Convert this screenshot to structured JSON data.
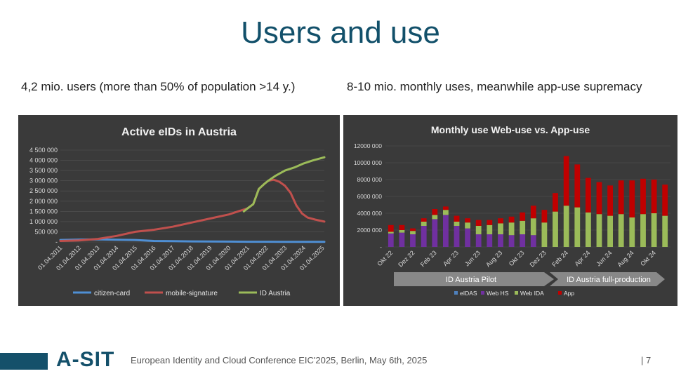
{
  "slide": {
    "title": "Users and use",
    "left_subtitle": "4,2 mio. users (more than 50% of population >14 y.)",
    "right_subtitle": "8-10 mio. monthly uses, meanwhile app-use supremacy",
    "logo": "A-SIT",
    "conference": "European Identity and Cloud Conference EIC'2025, Berlin, May 6th, 2025",
    "page": "| 7"
  },
  "chart_data": [
    {
      "type": "line",
      "title": "Active eIDs in Austria",
      "ylim": [
        0,
        4500000
      ],
      "yticks": [
        "4 500 000",
        "4 000 000",
        "3 500 000",
        "3 000 000",
        "2 500 000",
        "2 000 000",
        "1 500 000",
        "1 000 000",
        "500 000",
        "-"
      ],
      "xticks": [
        "01.04.2011",
        "01.04.2012",
        "01.04.2013",
        "01.04.2014",
        "01.04.2015",
        "01.04.2016",
        "01.04.2017",
        "01.04.2018",
        "01.04.2019",
        "01.04.2020",
        "01.04.2021",
        "01.04.2022",
        "01.04.2023",
        "01.04.2024",
        "01.04.2025"
      ],
      "legend_position": "bottom",
      "series": [
        {
          "name": "citizen-card",
          "color": "#4f8fd4",
          "x": [
            2011,
            2012,
            2013,
            2014,
            2015,
            2016,
            2017,
            2018,
            2019,
            2020,
            2021,
            2022,
            2023,
            2024,
            2025.1
          ],
          "y": [
            100000,
            120000,
            130000,
            110000,
            100000,
            50000,
            40000,
            30000,
            25000,
            20000,
            15000,
            15000,
            10000,
            10000,
            10000
          ]
        },
        {
          "name": "mobile-signature",
          "color": "#c0504d",
          "x": [
            2011,
            2012,
            2013,
            2014,
            2015,
            2016,
            2017,
            2018,
            2019,
            2020,
            2020.5,
            2021,
            2021.3,
            2021.6,
            2021.9,
            2022.1,
            2022.4,
            2022.7,
            2023,
            2023.3,
            2023.6,
            2023.9,
            2024.2,
            2024.6,
            2025.1
          ],
          "y": [
            50000,
            80000,
            150000,
            300000,
            500000,
            600000,
            750000,
            950000,
            1150000,
            1350000,
            1500000,
            1650000,
            1850000,
            2600000,
            2850000,
            3000000,
            3050000,
            2950000,
            2750000,
            2400000,
            1800000,
            1400000,
            1200000,
            1100000,
            1000000
          ]
        },
        {
          "name": "ID Austria",
          "color": "#9bbb59",
          "x": [
            2020.8,
            2021,
            2021.3,
            2021.6,
            2021.9,
            2022.1,
            2022.5,
            2023,
            2023.5,
            2024,
            2024.5,
            2025.1
          ],
          "y": [
            1500000,
            1650000,
            1850000,
            2600000,
            2850000,
            3000000,
            3250000,
            3500000,
            3650000,
            3850000,
            4000000,
            4150000
          ]
        }
      ]
    },
    {
      "type": "bar",
      "stacked": true,
      "title": "Monthly use Web-use vs. App-use",
      "ylim": [
        0,
        12000000
      ],
      "yticks": [
        "12000 000",
        "10000 000",
        "8000 000",
        "6000 000",
        "4000 000",
        "2000 000",
        "-"
      ],
      "xtick_labels": [
        "Okt 22",
        "Dez 22",
        "Feb 23",
        "Apr 23",
        "Jun 23",
        "Aug 23",
        "Okt 23",
        "Dez 23",
        "Feb 24",
        "Apr 24",
        "Jun 24",
        "Aug 24",
        "Okt 24"
      ],
      "categories": [
        "Okt 22",
        "Nov 22",
        "Dez 22",
        "Jan 23",
        "Feb 23",
        "Mär 23",
        "Apr 23",
        "Mai 23",
        "Jun 23",
        "Jul 23",
        "Aug 23",
        "Sep 23",
        "Okt 23",
        "Nov 23",
        "Dez 23",
        "Jan 24",
        "Feb 24",
        "Mär 24",
        "Apr 24",
        "Mai 24",
        "Jun 24",
        "Jul 24",
        "Aug 24",
        "Sep 24",
        "Okt 24",
        "Nov 24"
      ],
      "legend_position": "bottom",
      "series": [
        {
          "name": "eIDAS",
          "color": "#4f81bd",
          "values": [
            0,
            0,
            0,
            0,
            0,
            0,
            0,
            0,
            0,
            0,
            0,
            0,
            0,
            0,
            0,
            0,
            0,
            0,
            0,
            0,
            0,
            0,
            0,
            0,
            0,
            0
          ]
        },
        {
          "name": "Web HS",
          "color": "#7030a0",
          "values": [
            1600000,
            1700000,
            1500000,
            2500000,
            3300000,
            3800000,
            2500000,
            2200000,
            1500000,
            1500000,
            1500000,
            1400000,
            1500000,
            1400000,
            0,
            0,
            0,
            0,
            0,
            0,
            0,
            0,
            0,
            0,
            0,
            0
          ]
        },
        {
          "name": "Web IDA",
          "color": "#9bbb59",
          "values": [
            200000,
            300000,
            400000,
            500000,
            500000,
            600000,
            500000,
            700000,
            1000000,
            1100000,
            1300000,
            1500000,
            1600000,
            2000000,
            2900000,
            4200000,
            4900000,
            4700000,
            4100000,
            3900000,
            3700000,
            3900000,
            3500000,
            3900000,
            4000000,
            3700000
          ]
        },
        {
          "name": "App",
          "color": "#c00000",
          "values": [
            800000,
            600000,
            300000,
            400000,
            700000,
            400000,
            700000,
            500000,
            700000,
            600000,
            600000,
            700000,
            1000000,
            1500000,
            1500000,
            2200000,
            5900000,
            5100000,
            4100000,
            3800000,
            3600000,
            4000000,
            4400000,
            4200000,
            4000000,
            3700000
          ]
        }
      ],
      "annotations": [
        "ID Austria Pilot",
        "ID Austria full-production"
      ]
    }
  ]
}
